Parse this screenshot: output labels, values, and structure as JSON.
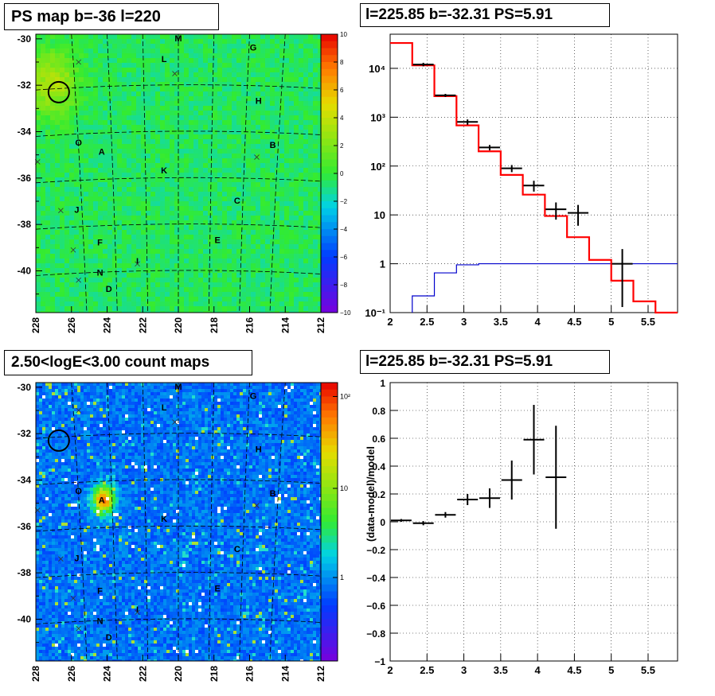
{
  "panels": {
    "ps_map": {
      "title": "PS map b=-36 l=220",
      "x_ticks": [
        "228",
        "226",
        "224",
        "222",
        "220",
        "218",
        "216",
        "214",
        "212"
      ],
      "y_ticks": [
        "-30",
        "-32",
        "-34",
        "-36",
        "-38",
        "-40"
      ],
      "colorbar_ticks": [
        "10",
        "8",
        "6",
        "4",
        "2",
        "0",
        "−2",
        "−4",
        "−6",
        "−8",
        "−10"
      ],
      "labels": [
        "M",
        "G",
        "L",
        "H",
        "O",
        "B",
        "A",
        "K",
        "C",
        "J",
        "E",
        "F",
        "I",
        "N",
        "D"
      ]
    },
    "count_map": {
      "title": "2.50<logE<3.00 count maps",
      "x_ticks": [
        "228",
        "226",
        "224",
        "222",
        "220",
        "218",
        "216",
        "214",
        "212"
      ],
      "y_ticks": [
        "-30",
        "-32",
        "-34",
        "-36",
        "-38",
        "-40"
      ],
      "colorbar_ticks": [
        "10²",
        "10",
        "1"
      ],
      "labels": [
        "M",
        "G",
        "L",
        "H",
        "O",
        "B",
        "A",
        "K",
        "C",
        "J",
        "E",
        "F",
        "I",
        "N",
        "D"
      ]
    },
    "spectrum": {
      "title": "l=225.85 b=-32.31 PS=5.91",
      "x_ticks": [
        "2",
        "2.5",
        "3",
        "3.5",
        "4",
        "4.5",
        "5",
        "5.5"
      ],
      "y_ticks": [
        "10⁻¹",
        "1",
        "10",
        "10²",
        "10³",
        "10⁴"
      ]
    },
    "residual": {
      "title": "l=225.85 b=-32.31 PS=5.91",
      "ylabel": "(data-model)/model",
      "x_ticks": [
        "2",
        "2.5",
        "3",
        "3.5",
        "4",
        "4.5",
        "5",
        "5.5"
      ],
      "y_ticks": [
        "1",
        "0.8",
        "0.6",
        "0.4",
        "0.2",
        "0",
        "−0.2",
        "−0.4",
        "−0.6",
        "−0.8",
        "−1"
      ]
    }
  },
  "colors": {
    "model": "#ff0000",
    "data": "#000000",
    "background_model": "#0000cc",
    "map_base": "#33ee33"
  },
  "chart_data": [
    {
      "type": "heatmap",
      "name": "PS map",
      "title": "PS map b=-36 l=220",
      "xlim": [
        228,
        212
      ],
      "ylim": [
        -41.8,
        -29.8
      ],
      "zlim": [
        -10,
        10
      ],
      "circle_center": {
        "l": 226.8,
        "b": -32.3
      },
      "sources": [
        {
          "label": "M",
          "l": 220.0,
          "b": -30.1
        },
        {
          "label": "G",
          "l": 215.8,
          "b": -30.5
        },
        {
          "label": "L",
          "l": 220.8,
          "b": -31.0
        },
        {
          "label": "H",
          "l": 215.5,
          "b": -32.8
        },
        {
          "label": "O",
          "l": 225.6,
          "b": -34.6
        },
        {
          "label": "B",
          "l": 214.7,
          "b": -34.7
        },
        {
          "label": "A",
          "l": 224.3,
          "b": -35.0
        },
        {
          "label": "K",
          "l": 220.8,
          "b": -35.8
        },
        {
          "label": "C",
          "l": 216.7,
          "b": -37.1
        },
        {
          "label": "J",
          "l": 225.7,
          "b": -37.5
        },
        {
          "label": "E",
          "l": 217.8,
          "b": -38.8
        },
        {
          "label": "F",
          "l": 224.4,
          "b": -38.9
        },
        {
          "label": "I",
          "l": 222.3,
          "b": -39.7
        },
        {
          "label": "N",
          "l": 224.4,
          "b": -40.2
        },
        {
          "label": "D",
          "l": 223.9,
          "b": -40.9
        }
      ],
      "hotspots": [
        {
          "l": 227.2,
          "b": -31.8,
          "value": 4
        }
      ]
    },
    {
      "type": "heatmap",
      "name": "count map",
      "title": "2.50<logE<3.00 count maps",
      "xlim": [
        228,
        212
      ],
      "ylim": [
        -41.8,
        -29.8
      ],
      "zscale": "log",
      "hotspots": [
        {
          "l": 224.3,
          "b": -34.8,
          "value": 100
        }
      ]
    },
    {
      "type": "line",
      "name": "spectrum",
      "title": "l=225.85 b=-32.31 PS=5.91",
      "xlim": [
        2,
        5.9
      ],
      "ylim": [
        0.1,
        50000
      ],
      "yscale": "log",
      "series": [
        {
          "name": "model",
          "bin_edges": [
            2.0,
            2.3,
            2.6,
            2.9,
            3.2,
            3.5,
            3.8,
            4.1,
            4.4,
            4.7,
            5.0,
            5.3,
            5.6,
            5.9
          ],
          "values": [
            33000,
            11500,
            2700,
            680,
            200,
            66,
            26,
            9.5,
            3.5,
            1.2,
            0.45,
            0.17,
            0.09
          ]
        },
        {
          "name": "data",
          "x": [
            2.45,
            2.75,
            3.05,
            3.35,
            3.65,
            3.95,
            4.25,
            4.55,
            5.15
          ],
          "y": [
            12000,
            2800,
            800,
            240,
            90,
            40,
            13,
            11,
            1
          ],
          "yerr": [
            [
              11000,
              13000
            ],
            [
              2600,
              3000
            ],
            [
              700,
              900
            ],
            [
              210,
              270
            ],
            [
              75,
              105
            ],
            [
              30,
              50
            ],
            [
              8,
              18
            ],
            [
              6,
              16
            ],
            [
              0.13,
              2
            ]
          ]
        },
        {
          "name": "background",
          "bin_edges": [
            2.3,
            2.6,
            2.9,
            3.2,
            3.5,
            3.8,
            4.1,
            4.4,
            4.7,
            5.0,
            5.3,
            5.6,
            5.9
          ],
          "values": [
            0.22,
            0.65,
            0.95,
            1,
            1,
            1,
            1,
            1,
            1,
            1,
            1,
            1
          ]
        }
      ]
    },
    {
      "type": "scatter",
      "name": "residual",
      "title": "l=225.85 b=-32.31 PS=5.91",
      "ylabel": "(data-model)/model",
      "xlim": [
        2,
        5.9
      ],
      "ylim": [
        -1,
        1
      ],
      "x": [
        2.15,
        2.45,
        2.75,
        3.05,
        3.35,
        3.65,
        3.95,
        4.25
      ],
      "y": [
        0.01,
        -0.01,
        0.05,
        0.16,
        0.17,
        0.3,
        0.59,
        0.32
      ],
      "yerr": [
        0.01,
        0.015,
        0.02,
        0.04,
        0.07,
        0.14,
        0.25,
        0.37
      ]
    }
  ]
}
